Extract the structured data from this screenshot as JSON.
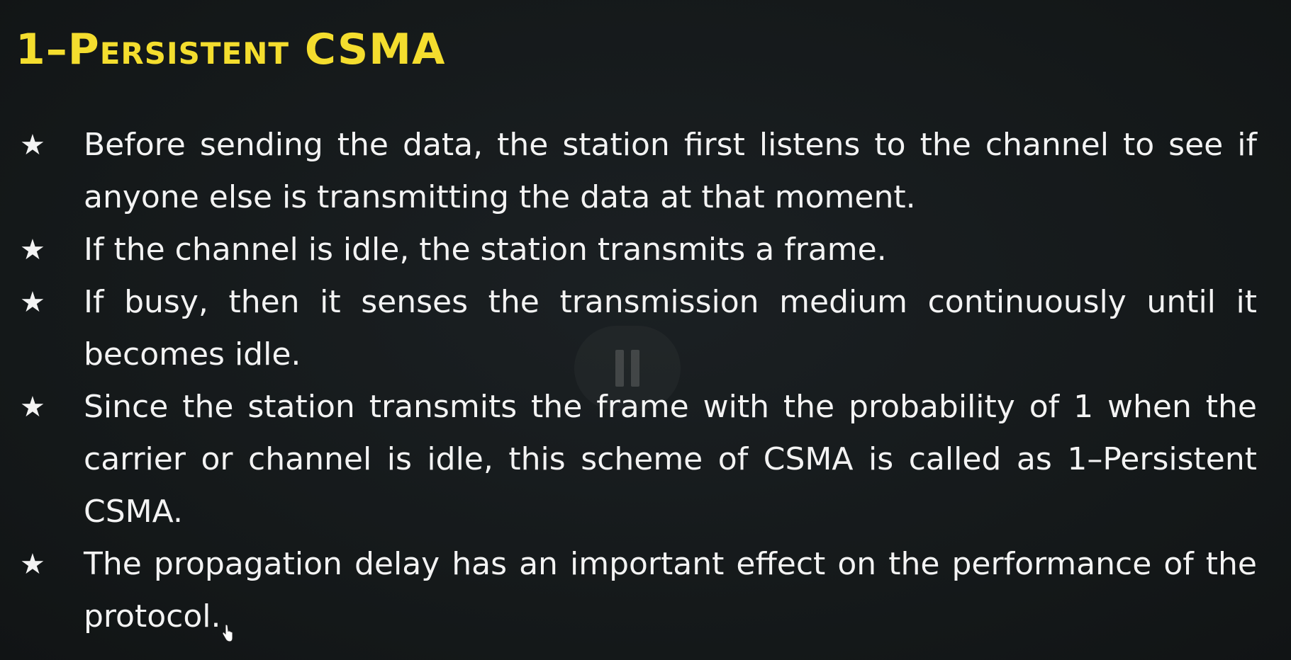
{
  "slide": {
    "title": "1–Persistent CSMA",
    "bullet_glyph": "★",
    "bullets": [
      {
        "text": "Before sending the data, the station first listens to the channel to see if anyone else is transmitting the data at that moment."
      },
      {
        "text": "If the channel is idle, the station transmits a frame."
      },
      {
        "text": "If busy, then it senses the transmission medium continuously until it becomes idle."
      },
      {
        "text": "Since the station transmits the frame with the probability of 1 when the carrier or channel is idle, this scheme of CSMA is called as 1–Persistent CSMA."
      },
      {
        "text": "The propagation delay has an important effect on the performance of the protocol."
      }
    ]
  },
  "overlay": {
    "icon": "pause-icon"
  },
  "colors": {
    "background": "#15191c",
    "title": "#f4dd2e",
    "text": "#f3f3f3"
  }
}
